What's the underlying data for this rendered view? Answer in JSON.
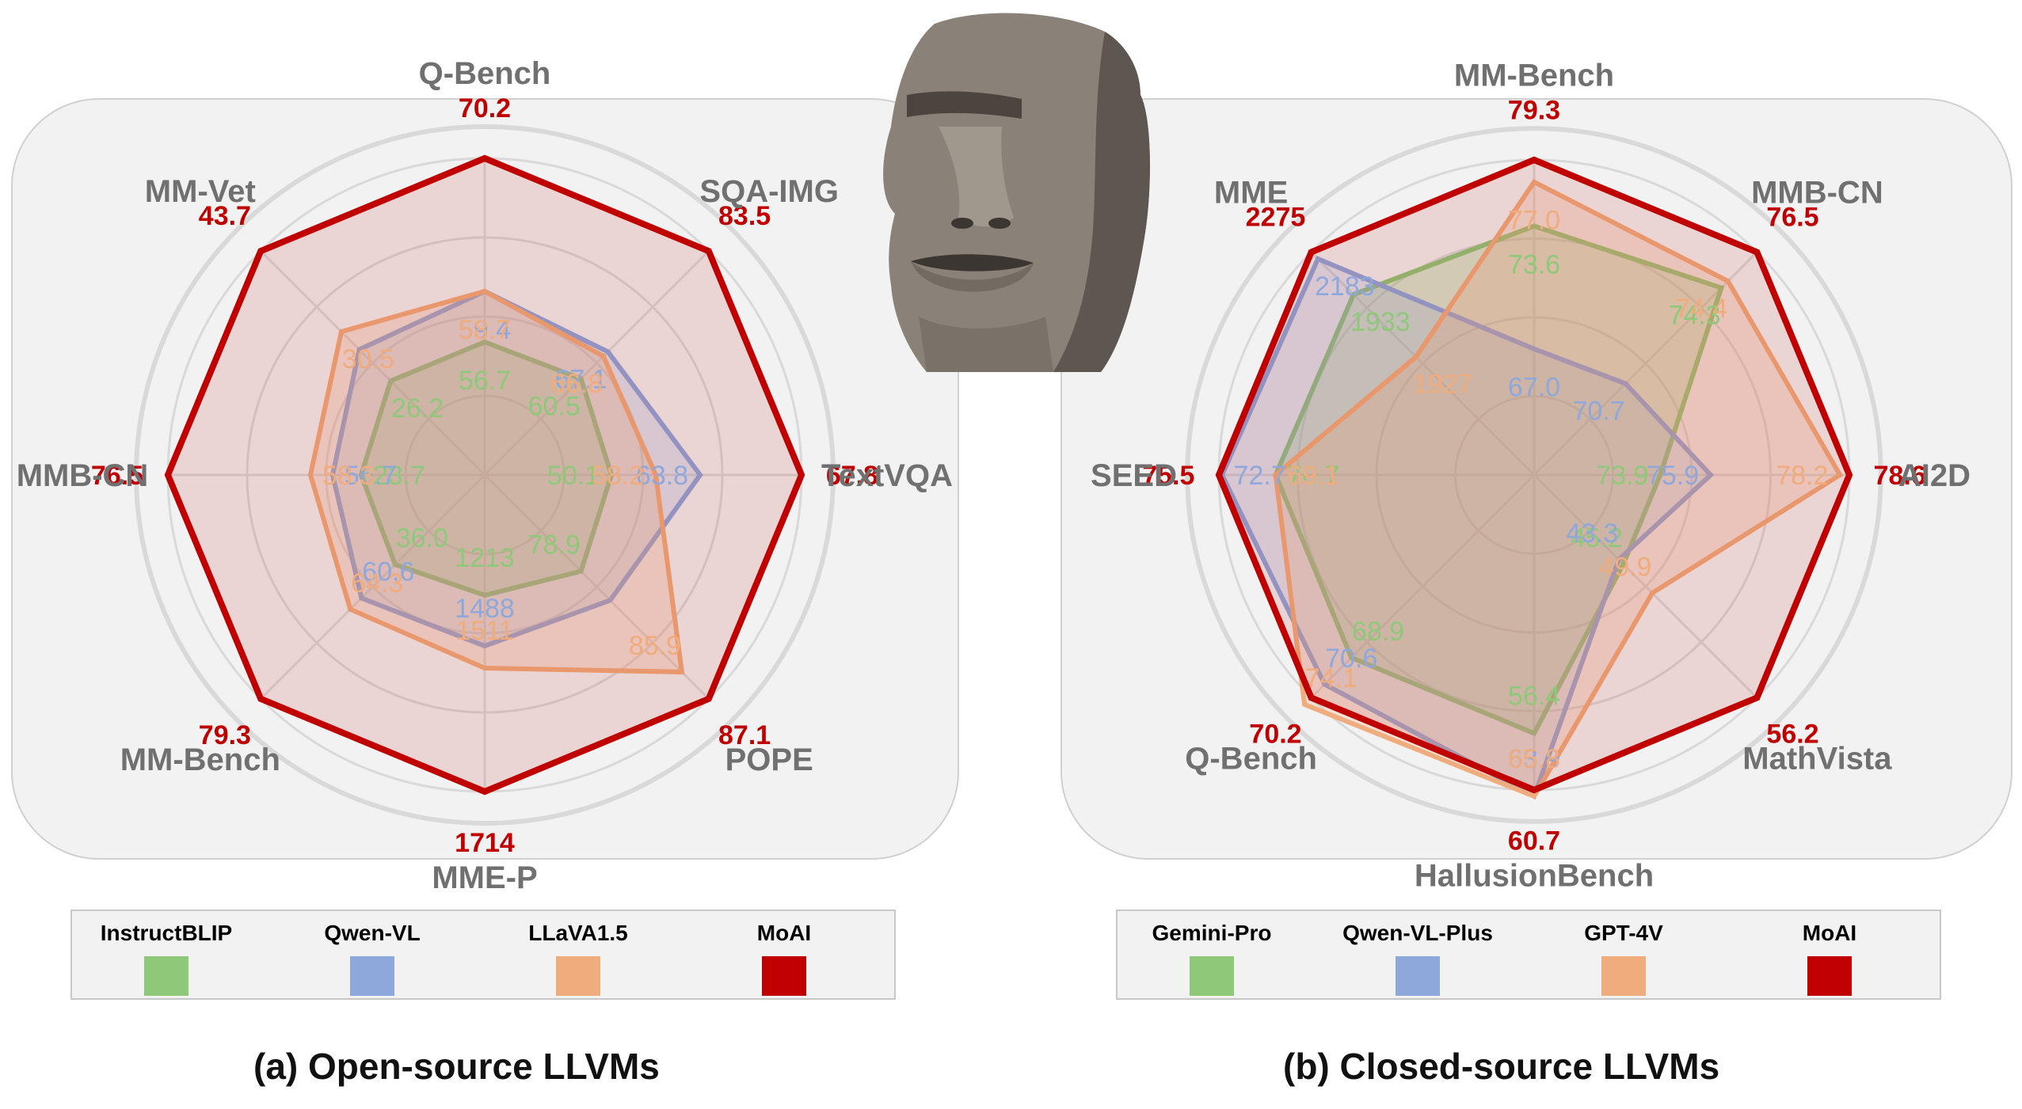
{
  "chart_data": [
    {
      "type": "radar",
      "title": "(a) Open-source LLVMs",
      "axes": [
        "Q-Bench",
        "SQA-IMG",
        "TextVQA",
        "POPE",
        "MME-P",
        "MM-Bench",
        "MMB-CN",
        "MM-Vet"
      ],
      "series": [
        {
          "name": "InstructBLIP",
          "color": "#8ec97a",
          "values": [
            "56.7",
            "60.5",
            "50.1",
            "78.9",
            "1213",
            "36.0",
            "23.7",
            "26.2"
          ]
        },
        {
          "name": "Qwen-VL",
          "color": "#8ea8dc",
          "values": [
            "59.4",
            "67.1",
            "63.8",
            "",
            "1488",
            "60.6",
            "56.7",
            ""
          ]
        },
        {
          "name": "LLaVA1.5",
          "color": "#f0ac7c",
          "values": [
            "58.7",
            "66.8",
            "58.2",
            "85.9",
            "1511",
            "64.3",
            "58.3",
            "30.5"
          ]
        },
        {
          "name": "MoAI",
          "color": "#c00000",
          "values": [
            "70.2",
            "83.5",
            "67.8",
            "87.1",
            "1714",
            "79.3",
            "76.5",
            "43.7"
          ]
        }
      ],
      "legend": {
        "placement": "bottom"
      }
    },
    {
      "type": "radar",
      "title": "(b) Closed-source LLVMs",
      "axes": [
        "MM-Bench",
        "MMB-CN",
        "AI2D",
        "MathVista",
        "HallusionBench",
        "Q-Bench",
        "SEED",
        "MME"
      ],
      "series": [
        {
          "name": "Gemini-Pro",
          "color": "#8ec97a",
          "values": [
            "73.6",
            "74.3",
            "73.9",
            "45.2",
            "56.4",
            "68.9",
            "70.7",
            "1933"
          ]
        },
        {
          "name": "Qwen-VL-Plus",
          "color": "#8ea8dc",
          "values": [
            "67.0",
            "70.7",
            "75.9",
            "43.3",
            "63.9",
            "70.6",
            "72.7",
            "2183"
          ]
        },
        {
          "name": "GPT-4V",
          "color": "#f0ac7c",
          "values": [
            "77.0",
            "74.4",
            "78.2",
            "49.9",
            "65.8",
            "74.1",
            "69.1",
            "1927"
          ]
        },
        {
          "name": "MoAI",
          "color": "#c00000",
          "values": [
            "79.3",
            "76.5",
            "78.6",
            "56.2",
            "60.7",
            "70.2",
            "75.5",
            "2275"
          ]
        }
      ],
      "legend": {
        "placement": "bottom"
      }
    }
  ],
  "captions": {
    "a": "(a) Open-source LLVMs",
    "b": "(b) Closed-source LLVMs"
  },
  "colors": {
    "axis_label": "#707070",
    "panel_bg": "#f2f2f2",
    "grid": "#d9d9d9",
    "legend_bg": "#f2f2f2"
  },
  "icons": {
    "mascot": "moai-statue-icon"
  }
}
